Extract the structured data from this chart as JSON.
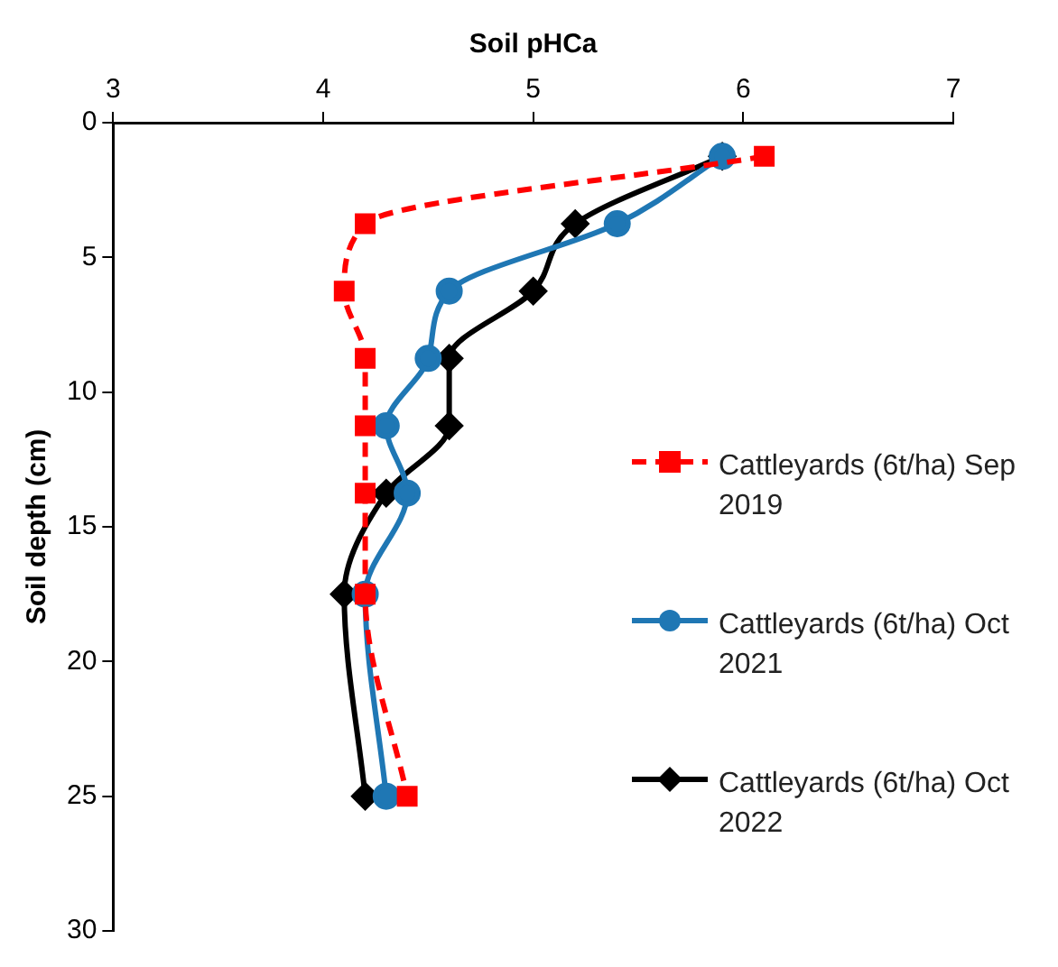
{
  "chart_data": {
    "type": "line",
    "xlabel": "Soil pHCa",
    "ylabel": "Soil depth (cm)",
    "xlim": [
      3,
      7
    ],
    "xticks": [
      3,
      4,
      5,
      6,
      7
    ],
    "ylim": [
      30,
      0
    ],
    "yticks": [
      0,
      5,
      10,
      15,
      20,
      25,
      30
    ],
    "grid": false,
    "legend": "right",
    "series": [
      {
        "name": "Cattleyards (6t/ha) Sep 2019",
        "color": "#ff0000",
        "marker": "square",
        "line_style": "dashed",
        "x": [
          6.1,
          4.2,
          4.1,
          4.2,
          4.2,
          4.2,
          4.2,
          4.4
        ],
        "values": [
          1.25,
          3.75,
          6.25,
          8.75,
          11.25,
          13.75,
          17.5,
          25
        ]
      },
      {
        "name": "Cattleyards (6t/ha) Oct 2021",
        "color": "#1f77b4",
        "marker": "circle",
        "line_style": "solid",
        "x": [
          5.9,
          5.4,
          4.6,
          4.5,
          4.3,
          4.4,
          4.2,
          4.3
        ],
        "values": [
          1.25,
          3.75,
          6.25,
          8.75,
          11.25,
          13.75,
          17.5,
          25
        ]
      },
      {
        "name": "Cattleyards (6t/ha) Oct 2022",
        "color": "#000000",
        "marker": "diamond",
        "line_style": "solid",
        "x": [
          5.9,
          5.2,
          5.0,
          4.6,
          4.6,
          4.3,
          4.1,
          4.2
        ],
        "values": [
          1.25,
          3.75,
          6.25,
          8.75,
          11.25,
          13.75,
          17.5,
          25
        ]
      }
    ]
  }
}
